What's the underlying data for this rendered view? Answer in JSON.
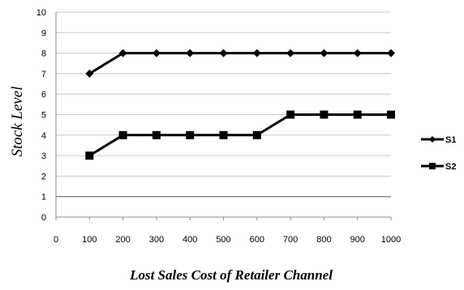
{
  "chart_data": {
    "type": "line",
    "title": "",
    "xlabel": "Lost Sales Cost of Retailer Channel",
    "ylabel": "Stock Level",
    "x": [
      100,
      200,
      300,
      400,
      500,
      600,
      700,
      800,
      900,
      1000
    ],
    "xticks": [
      "0",
      "100",
      "200",
      "300",
      "400",
      "500",
      "600",
      "700",
      "800",
      "900",
      "1000"
    ],
    "yticks": [
      "0",
      "1",
      "2",
      "3",
      "4",
      "5",
      "6",
      "7",
      "8",
      "9",
      "10"
    ],
    "xlim": [
      0,
      1000
    ],
    "ylim": [
      0,
      10
    ],
    "grid": true,
    "legend_position": "right",
    "series": [
      {
        "name": "S1",
        "marker": "diamond",
        "color": "#000000",
        "values": [
          7,
          8,
          8,
          8,
          8,
          8,
          8,
          8,
          8,
          8
        ]
      },
      {
        "name": "S2",
        "marker": "square",
        "color": "#000000",
        "values": [
          3,
          4,
          4,
          4,
          4,
          4,
          5,
          5,
          5,
          5
        ]
      }
    ]
  }
}
